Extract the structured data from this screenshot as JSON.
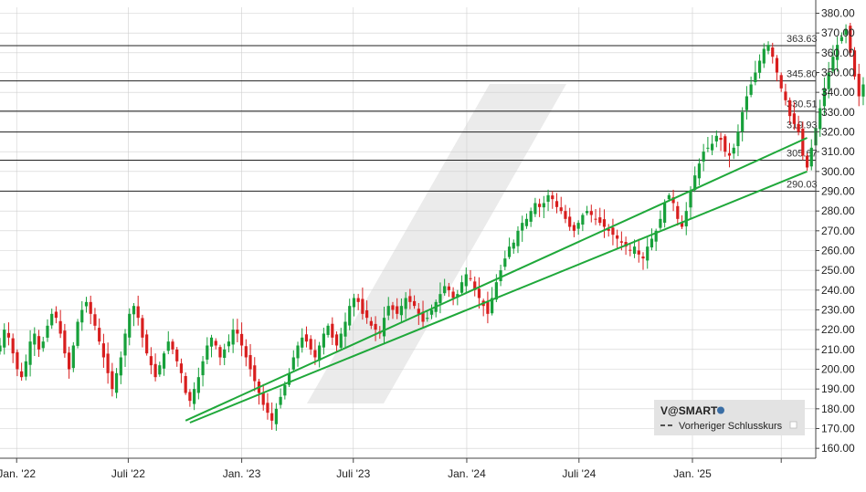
{
  "chart_data": {
    "type": "candlestick",
    "colors": {
      "up": "#17a03a",
      "down": "#d81e1e",
      "trendline": "#1fa83a",
      "level": "#222222",
      "grid": "#cfcfcf",
      "axis_text": "#222222",
      "watermark": "#ebebeb",
      "legend_bg": "#e3e3e3"
    },
    "y_range": [
      155,
      383
    ],
    "y_ticks": [
      160,
      170,
      180,
      190,
      200,
      210,
      220,
      230,
      240,
      250,
      260,
      270,
      280,
      290,
      300,
      310,
      320,
      330,
      340,
      350,
      360,
      370,
      380
    ],
    "y_tick_labels": [
      "160.00",
      "170.00",
      "180.00",
      "190.00",
      "200.00",
      "210.00",
      "220.00",
      "230.00",
      "240.00",
      "250.00",
      "260.00",
      "270.00",
      "280.00",
      "290.00",
      "300.00",
      "310.00",
      "320.00",
      "330.00",
      "340.00",
      "350.00",
      "360.00",
      "370.00",
      "380.00"
    ],
    "x_range": [
      "2021-12-05",
      "2025-07-20"
    ],
    "x_ticks": [
      {
        "date": "2022-01-01",
        "label": "Jan. '22"
      },
      {
        "date": "2022-07-01",
        "label": "Juli '22"
      },
      {
        "date": "2023-01-01",
        "label": "Jan. '23"
      },
      {
        "date": "2023-07-01",
        "label": "Juli '23"
      },
      {
        "date": "2024-01-01",
        "label": "Jan. '24"
      },
      {
        "date": "2024-07-01",
        "label": "Juli '24"
      },
      {
        "date": "2025-01-01",
        "label": "Jan. '25"
      },
      {
        "date": "2025-05-25",
        "label": ""
      }
    ],
    "levels": [
      {
        "value": 363.63,
        "label": "363.63"
      },
      {
        "value": 345.8,
        "label": "345.80"
      },
      {
        "value": 330.51,
        "label": "330.51"
      },
      {
        "value": 319.93,
        "label": "319.93"
      },
      {
        "value": 305.67,
        "label": "305.67"
      },
      {
        "value": 290.03,
        "label": "290.03"
      }
    ],
    "trendlines": [
      {
        "from": {
          "date": "2022-10-02",
          "value": 174
        },
        "to": {
          "date": "2025-07-06",
          "value": 317
        }
      },
      {
        "from": {
          "date": "2022-10-09",
          "value": 173
        },
        "to": {
          "date": "2025-07-06",
          "value": 300
        }
      }
    ],
    "legend": {
      "title": "V@SMART",
      "entry": "Vorheriger Schlusskurs"
    },
    "candles_weekly_close": [
      {
        "start": "2021-12-05",
        "closes": [
          212,
          220,
          216,
          208,
          200,
          196,
          204,
          214,
          218,
          210,
          214,
          222,
          228,
          226,
          218,
          208,
          200,
          212,
          224,
          230,
          234,
          228,
          222,
          214,
          206,
          198,
          190,
          198,
          206,
          218,
          228,
          232,
          226,
          216,
          208,
          202,
          196,
          202,
          208,
          214,
          210,
          204,
          198,
          188,
          184,
          190,
          196,
          204,
          212,
          216,
          212,
          206,
          210,
          214,
          220,
          218,
          212,
          206,
          200,
          194,
          188,
          182,
          178,
          174,
          180,
          186,
          192,
          198,
          206,
          212,
          216,
          214,
          210,
          206,
          212,
          218,
          222,
          216,
          212,
          218,
          224,
          232,
          236,
          234,
          228,
          226,
          222,
          220,
          218,
          226,
          232,
          230,
          228,
          232,
          236,
          234,
          232,
          228,
          224,
          226,
          230,
          234,
          238,
          242,
          240,
          236,
          238,
          244,
          248,
          246,
          240,
          236,
          232,
          228,
          236,
          244,
          250,
          256,
          262,
          264,
          270,
          274,
          276,
          280,
          284,
          282,
          284,
          288,
          286,
          282,
          280,
          276,
          272,
          270,
          274,
          278,
          280,
          278,
          276,
          274,
          272,
          270,
          268,
          266,
          264,
          262,
          260,
          262,
          258,
          256,
          262,
          266,
          270,
          276,
          284,
          288,
          284,
          276,
          272,
          280,
          290,
          298,
          304,
          310,
          312,
          314,
          318,
          316,
          310,
          308,
          312,
          320,
          330,
          338,
          344,
          350,
          356,
          362,
          364,
          358,
          350,
          342,
          336,
          328,
          324,
          320,
          308,
          302,
          312,
          322,
          332,
          342,
          350,
          358,
          364,
          368,
          372,
          360,
          348,
          338,
          344,
          350,
          352,
          350,
          348
        ]
      }
    ]
  }
}
